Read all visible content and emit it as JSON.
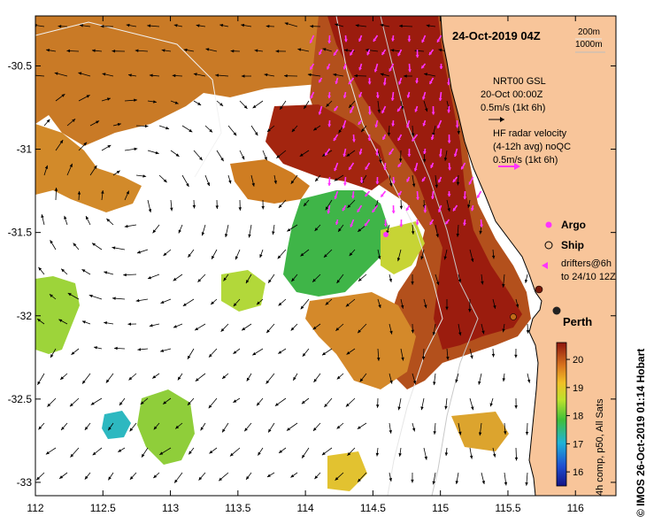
{
  "title": "24-Oct-2019 04Z",
  "depth_legend": [
    "200m",
    "1000m"
  ],
  "model_legend": [
    "NRT00 GSL",
    "20-Oct 00:00Z",
    "0.5m/s (1kt 6h)"
  ],
  "radar_legend": [
    "HF radar velocity",
    "(4-12h avg) noQC",
    "0.5m/s (1kt 6h)"
  ],
  "markers": {
    "argo": "Argo",
    "ship": "Ship",
    "drifters": [
      "drifters@6h",
      "to 24/10 12Z"
    ]
  },
  "city": "Perth",
  "colorbar": {
    "min": 15.5,
    "max": 20.6,
    "ticks": [
      "16",
      "17",
      "18",
      "19",
      "20"
    ],
    "label": "4h comp, p50, All Sats"
  },
  "axes": {
    "lon_ticks": [
      "112",
      "112.5",
      "113",
      "113.5",
      "114",
      "114.5",
      "115",
      "115.5",
      "116"
    ],
    "lat_ticks": [
      "-30.5",
      "-31",
      "-31.5",
      "-32",
      "-32.5",
      "-33"
    ]
  },
  "credit": "© IMOS 26-Oct-2019 01:14 Hobart",
  "colors": {
    "land": "#f8c59a",
    "arrow": "#000000",
    "radar_arrow": "#ff33ff",
    "warm": "#a11e0c",
    "mid": "#d98d2a",
    "cool": "#4fbf3a",
    "cold": "#27b3c9"
  }
}
